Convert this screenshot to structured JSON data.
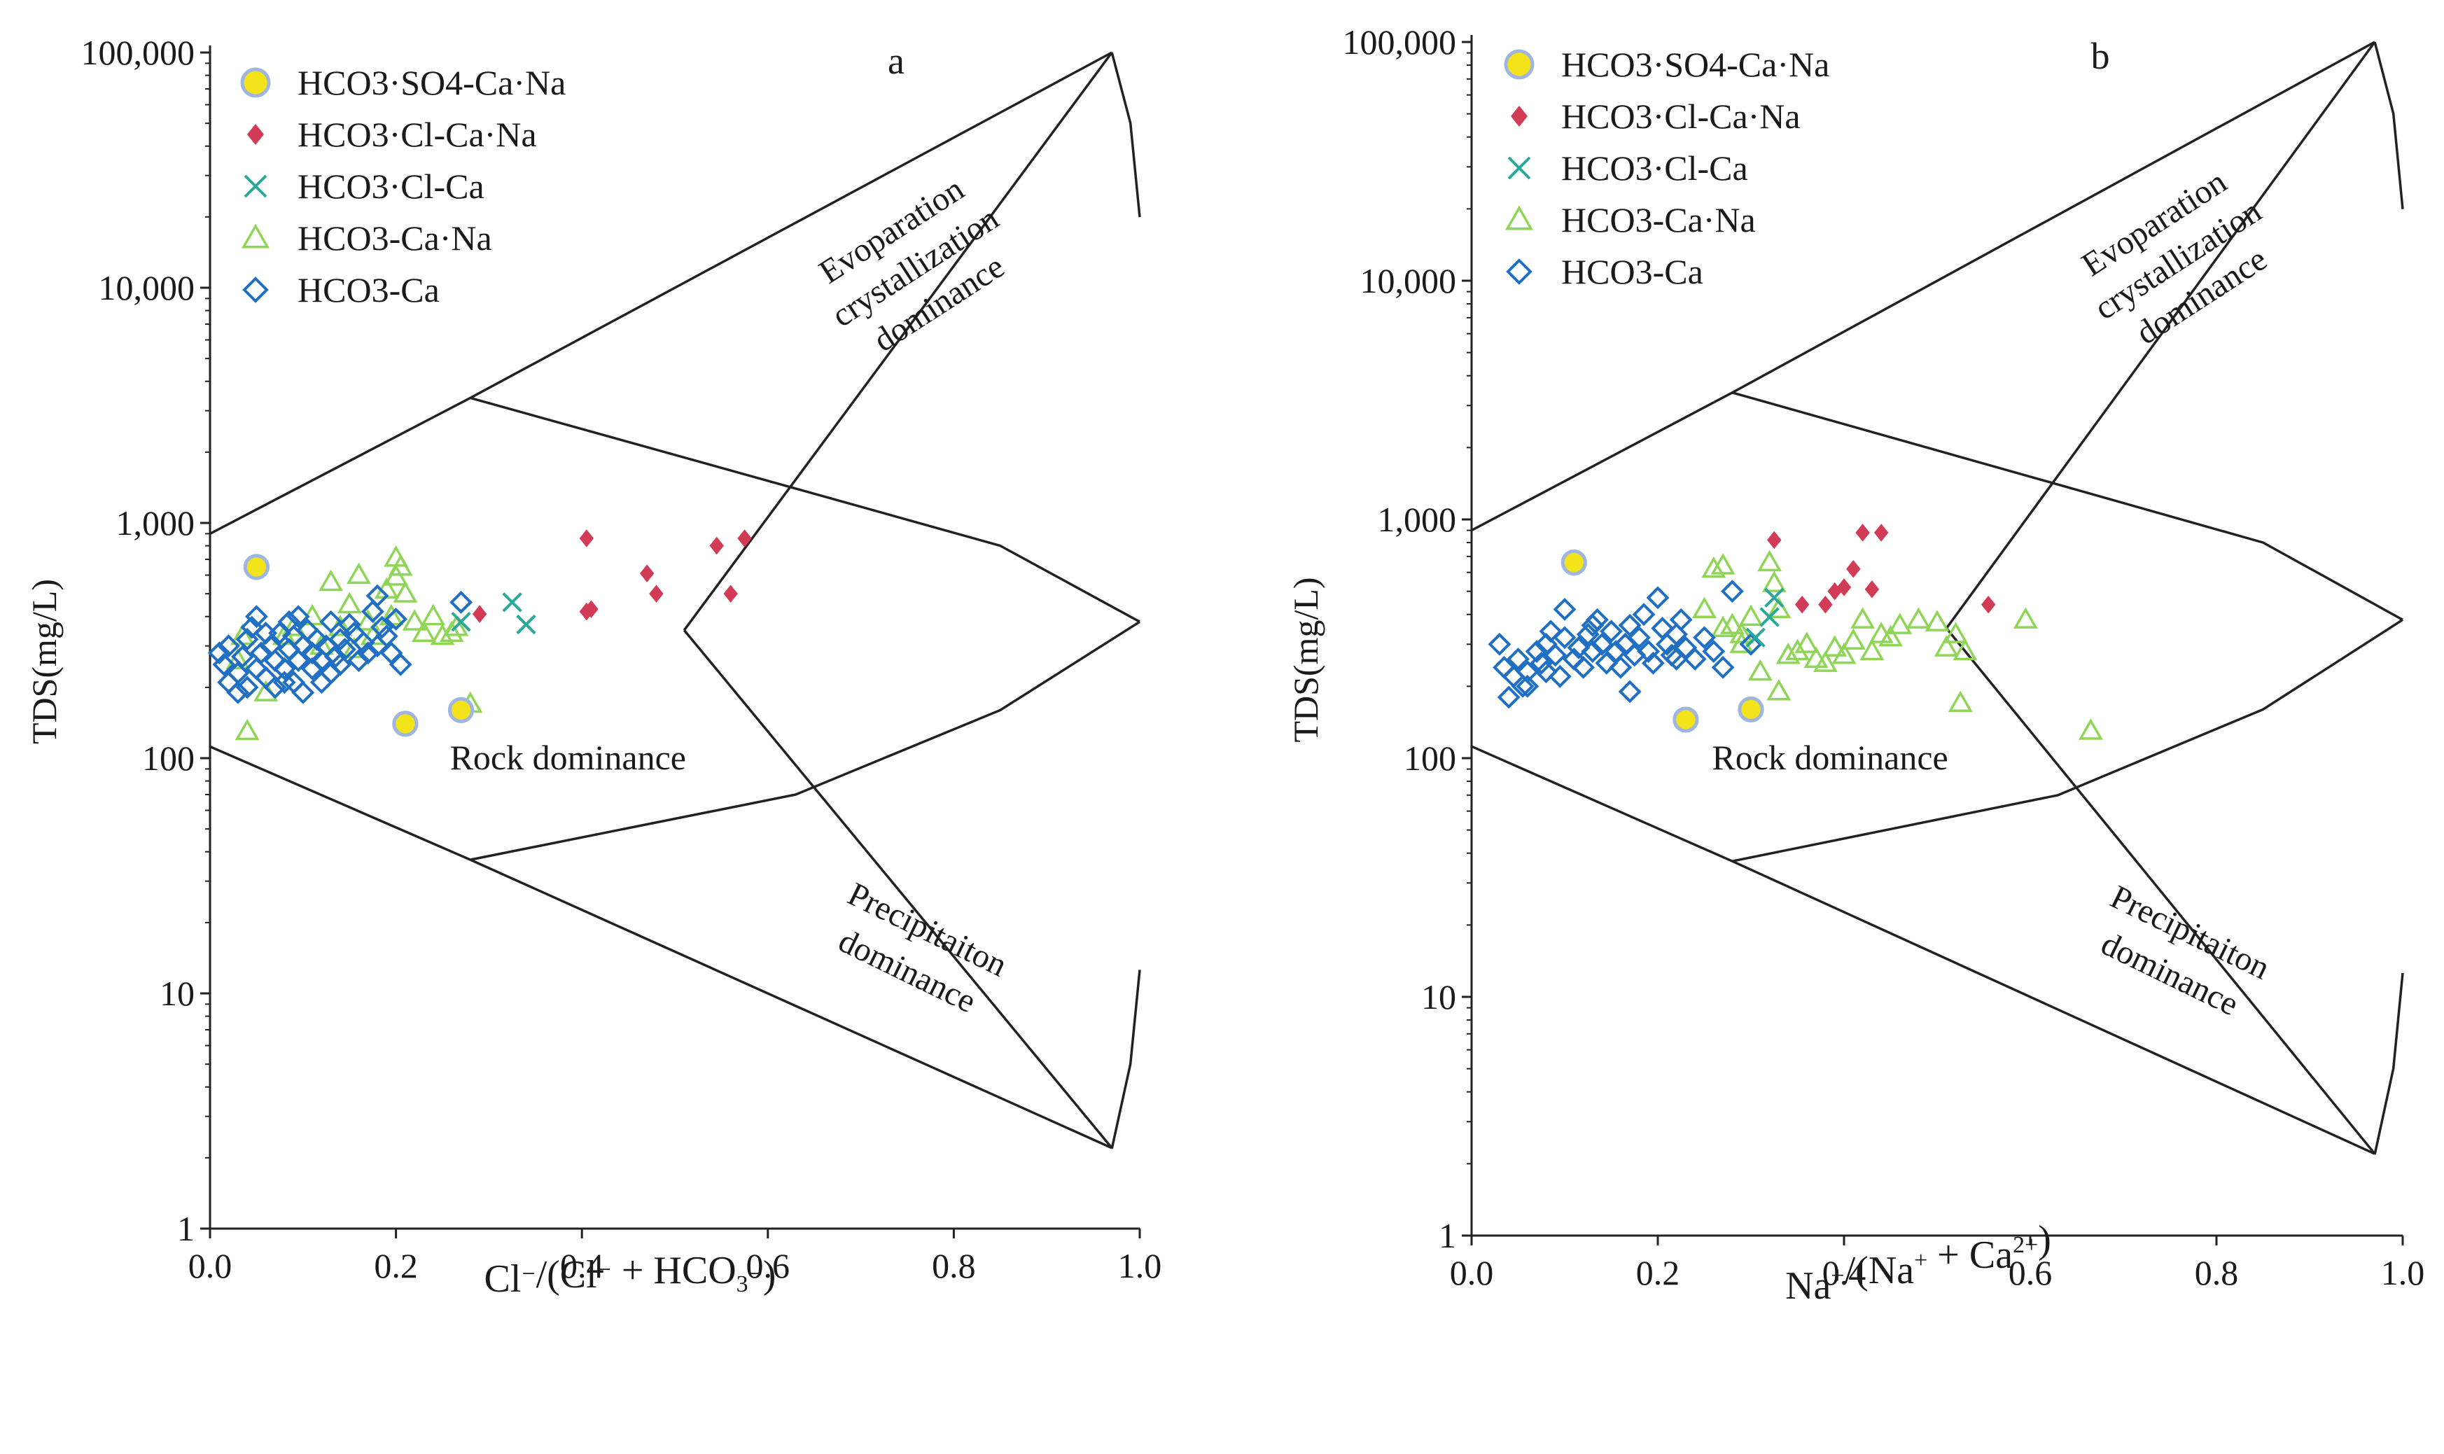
{
  "colors": {
    "hco3_so4_ca_na": "#f2e31b",
    "hco3_so4_ca_na_edge": "#9fb6e0",
    "hco3_cl_ca_na": "#d23b56",
    "hco3_cl_ca": "#2aa89a",
    "hco3_ca_na": "#8fd657",
    "hco3_ca": "#1f6fc4"
  },
  "chart_data": [
    {
      "type": "scatter",
      "panel_label": "a",
      "xlabel_parts": [
        "Cl",
        "⁻",
        "/(Cl",
        "⁻",
        " + HCO",
        "3",
        "⁻",
        ")"
      ],
      "ylabel": "TDS(mg/L)",
      "xlim": [
        0.0,
        1.0
      ],
      "ylim": [
        1,
        100000
      ],
      "yscale": "log",
      "x_ticks": [
        "0.0",
        "0.2",
        "0.4",
        "0.6",
        "0.8",
        "1.0"
      ],
      "y_ticks": [
        "1",
        "10",
        "100",
        "1,000",
        "10,000",
        "100,000"
      ],
      "legend_position": "top-left",
      "regions": [
        "Evoparation crystallization dominance",
        "Rock dominance",
        "Precipitaiton dominance"
      ],
      "region_labels": {
        "evap": [
          "Evoparation",
          "crystallization",
          "dominance"
        ],
        "rock": "Rock dominance",
        "precip": [
          "Precipitaiton",
          "dominance"
        ]
      },
      "series": [
        {
          "name": "HCO3·SO4-Ca·Na",
          "marker": "circle",
          "color_key": "hco3_so4_ca_na",
          "points": [
            [
              0.05,
              650
            ],
            [
              0.21,
              140
            ],
            [
              0.27,
              160
            ]
          ]
        },
        {
          "name": "HCO3·Cl-Ca·Na",
          "marker": "diamond-filled",
          "color_key": "hco3_cl_ca_na",
          "points": [
            [
              0.29,
              410
            ],
            [
              0.405,
              860
            ],
            [
              0.41,
              430
            ],
            [
              0.405,
              420
            ],
            [
              0.47,
              610
            ],
            [
              0.48,
              500
            ],
            [
              0.545,
              800
            ],
            [
              0.575,
              860
            ],
            [
              0.56,
              500
            ]
          ]
        },
        {
          "name": "HCO3·Cl-Ca",
          "marker": "x",
          "color_key": "hco3_cl_ca",
          "points": [
            [
              0.27,
              380
            ],
            [
              0.325,
              460
            ],
            [
              0.34,
              370
            ]
          ]
        },
        {
          "name": "HCO3-Ca·Na",
          "marker": "triangle",
          "color_key": "hco3_ca_na",
          "points": [
            [
              0.04,
              130
            ],
            [
              0.06,
              190
            ],
            [
              0.09,
              360
            ],
            [
              0.13,
              560
            ],
            [
              0.14,
              360
            ],
            [
              0.15,
              450
            ],
            [
              0.16,
              600
            ],
            [
              0.17,
              380
            ],
            [
              0.175,
              330
            ],
            [
              0.19,
              520
            ],
            [
              0.2,
              710
            ],
            [
              0.205,
              650
            ],
            [
              0.2,
              590
            ],
            [
              0.21,
              500
            ],
            [
              0.195,
              400
            ],
            [
              0.22,
              380
            ],
            [
              0.23,
              340
            ],
            [
              0.24,
              400
            ],
            [
              0.25,
              330
            ],
            [
              0.26,
              340
            ],
            [
              0.265,
              360
            ],
            [
              0.28,
              170
            ],
            [
              0.08,
              330
            ],
            [
              0.11,
              400
            ],
            [
              0.12,
              300
            ],
            [
              0.035,
              330
            ],
            [
              0.03,
              260
            ],
            [
              0.155,
              290
            ]
          ]
        },
        {
          "name": "HCO3-Ca",
          "marker": "diamond",
          "color_key": "hco3_ca",
          "points": [
            [
              0.01,
              280
            ],
            [
              0.015,
              250
            ],
            [
              0.02,
              210
            ],
            [
              0.02,
              300
            ],
            [
              0.03,
              230
            ],
            [
              0.035,
              270
            ],
            [
              0.04,
              320
            ],
            [
              0.04,
              200
            ],
            [
              0.045,
              360
            ],
            [
              0.05,
              400
            ],
            [
              0.05,
              240
            ],
            [
              0.055,
              280
            ],
            [
              0.06,
              220
            ],
            [
              0.065,
              300
            ],
            [
              0.07,
              260
            ],
            [
              0.07,
              200
            ],
            [
              0.075,
              340
            ],
            [
              0.08,
              240
            ],
            [
              0.085,
              290
            ],
            [
              0.085,
              380
            ],
            [
              0.09,
              210
            ],
            [
              0.09,
              330
            ],
            [
              0.095,
              260
            ],
            [
              0.1,
              300
            ],
            [
              0.1,
              190
            ],
            [
              0.105,
              350
            ],
            [
              0.11,
              240
            ],
            [
              0.11,
              280
            ],
            [
              0.115,
              320
            ],
            [
              0.12,
              210
            ],
            [
              0.12,
              260
            ],
            [
              0.125,
              300
            ],
            [
              0.13,
              230
            ],
            [
              0.135,
              270
            ],
            [
              0.14,
              320
            ],
            [
              0.14,
              250
            ],
            [
              0.145,
              290
            ],
            [
              0.15,
              370
            ],
            [
              0.155,
              340
            ],
            [
              0.16,
              260
            ],
            [
              0.165,
              310
            ],
            [
              0.17,
              280
            ],
            [
              0.175,
              420
            ],
            [
              0.18,
              490
            ],
            [
              0.18,
              300
            ],
            [
              0.185,
              360
            ],
            [
              0.19,
              330
            ],
            [
              0.195,
              280
            ],
            [
              0.2,
              390
            ],
            [
              0.205,
              250
            ],
            [
              0.27,
              460
            ],
            [
              0.08,
              210
            ],
            [
              0.03,
              190
            ],
            [
              0.06,
              340
            ],
            [
              0.095,
              400
            ],
            [
              0.13,
              380
            ]
          ]
        }
      ]
    },
    {
      "type": "scatter",
      "panel_label": "b",
      "xlabel_parts": [
        "Na",
        "+",
        "/(Na",
        "+",
        " + Ca",
        "2+",
        ")"
      ],
      "ylabel": "TDS(mg/L)",
      "xlim": [
        0.0,
        1.0
      ],
      "ylim": [
        1,
        100000
      ],
      "yscale": "log",
      "x_ticks": [
        "0.0",
        "0.2",
        "0.4",
        "0.6",
        "0.8",
        "1.0"
      ],
      "y_ticks": [
        "1",
        "10",
        "100",
        "1,000",
        "10,000",
        "100,000"
      ],
      "legend_position": "top-left",
      "regions": [
        "Evoparation crystallization dominance",
        "Rock dominance",
        "Precipitaiton dominance"
      ],
      "region_labels": {
        "evap": [
          "Evoparation",
          "crystallization",
          "dominance"
        ],
        "rock": "Rock dominance",
        "precip": [
          "Precipitaiton",
          "dominance"
        ]
      },
      "series": [
        {
          "name": "HCO3·SO4-Ca·Na",
          "marker": "circle",
          "color_key": "hco3_so4_ca_na",
          "points": [
            [
              0.11,
              660
            ],
            [
              0.23,
              145
            ],
            [
              0.3,
              160
            ]
          ]
        },
        {
          "name": "HCO3·Cl-Ca·Na",
          "marker": "diamond-filled",
          "color_key": "hco3_cl_ca_na",
          "points": [
            [
              0.325,
              820
            ],
            [
              0.355,
              440
            ],
            [
              0.38,
              440
            ],
            [
              0.39,
              500
            ],
            [
              0.4,
              520
            ],
            [
              0.41,
              620
            ],
            [
              0.42,
              880
            ],
            [
              0.43,
              510
            ],
            [
              0.44,
              880
            ],
            [
              0.555,
              440
            ]
          ]
        },
        {
          "name": "HCO3·Cl-Ca",
          "marker": "x",
          "color_key": "hco3_cl_ca",
          "points": [
            [
              0.305,
              320
            ],
            [
              0.325,
              470
            ],
            [
              0.32,
              390
            ]
          ]
        },
        {
          "name": "HCO3-Ca·Na",
          "marker": "triangle",
          "color_key": "hco3_ca_na",
          "points": [
            [
              0.25,
              420
            ],
            [
              0.26,
              620
            ],
            [
              0.27,
              640
            ],
            [
              0.28,
              360
            ],
            [
              0.29,
              330
            ],
            [
              0.3,
              390
            ],
            [
              0.31,
              230
            ],
            [
              0.32,
              660
            ],
            [
              0.325,
              540
            ],
            [
              0.33,
              420
            ],
            [
              0.34,
              270
            ],
            [
              0.35,
              280
            ],
            [
              0.36,
              300
            ],
            [
              0.37,
              260
            ],
            [
              0.38,
              250
            ],
            [
              0.39,
              290
            ],
            [
              0.4,
              270
            ],
            [
              0.41,
              310
            ],
            [
              0.42,
              380
            ],
            [
              0.43,
              280
            ],
            [
              0.44,
              330
            ],
            [
              0.45,
              320
            ],
            [
              0.46,
              360
            ],
            [
              0.48,
              380
            ],
            [
              0.5,
              370
            ],
            [
              0.51,
              290
            ],
            [
              0.52,
              330
            ],
            [
              0.525,
              170
            ],
            [
              0.53,
              280
            ],
            [
              0.595,
              380
            ],
            [
              0.665,
              130
            ],
            [
              0.33,
              190
            ],
            [
              0.27,
              350
            ],
            [
              0.29,
              300
            ]
          ]
        },
        {
          "name": "HCO3-Ca",
          "marker": "diamond",
          "color_key": "hco3_ca",
          "points": [
            [
              0.03,
              300
            ],
            [
              0.035,
              240
            ],
            [
              0.04,
              180
            ],
            [
              0.045,
              220
            ],
            [
              0.05,
              260
            ],
            [
              0.055,
              200
            ],
            [
              0.06,
              230
            ],
            [
              0.07,
              280
            ],
            [
              0.075,
              250
            ],
            [
              0.08,
              300
            ],
            [
              0.085,
              340
            ],
            [
              0.09,
              270
            ],
            [
              0.095,
              220
            ],
            [
              0.1,
              420
            ],
            [
              0.1,
              320
            ],
            [
              0.11,
              260
            ],
            [
              0.115,
              290
            ],
            [
              0.12,
              240
            ],
            [
              0.125,
              330
            ],
            [
              0.13,
              280
            ],
            [
              0.135,
              380
            ],
            [
              0.14,
              300
            ],
            [
              0.145,
              250
            ],
            [
              0.15,
              340
            ],
            [
              0.155,
              280
            ],
            [
              0.16,
              240
            ],
            [
              0.165,
              300
            ],
            [
              0.17,
              360
            ],
            [
              0.175,
              270
            ],
            [
              0.18,
              320
            ],
            [
              0.185,
              400
            ],
            [
              0.19,
              280
            ],
            [
              0.195,
              250
            ],
            [
              0.2,
              470
            ],
            [
              0.205,
              350
            ],
            [
              0.21,
              300
            ],
            [
              0.215,
              270
            ],
            [
              0.22,
              330
            ],
            [
              0.225,
              380
            ],
            [
              0.23,
              290
            ],
            [
              0.24,
              260
            ],
            [
              0.25,
              320
            ],
            [
              0.26,
              280
            ],
            [
              0.27,
              240
            ],
            [
              0.28,
              500
            ],
            [
              0.3,
              300
            ],
            [
              0.08,
              230
            ],
            [
              0.06,
              200
            ],
            [
              0.17,
              190
            ],
            [
              0.13,
              360
            ],
            [
              0.22,
              260
            ]
          ]
        }
      ]
    }
  ]
}
